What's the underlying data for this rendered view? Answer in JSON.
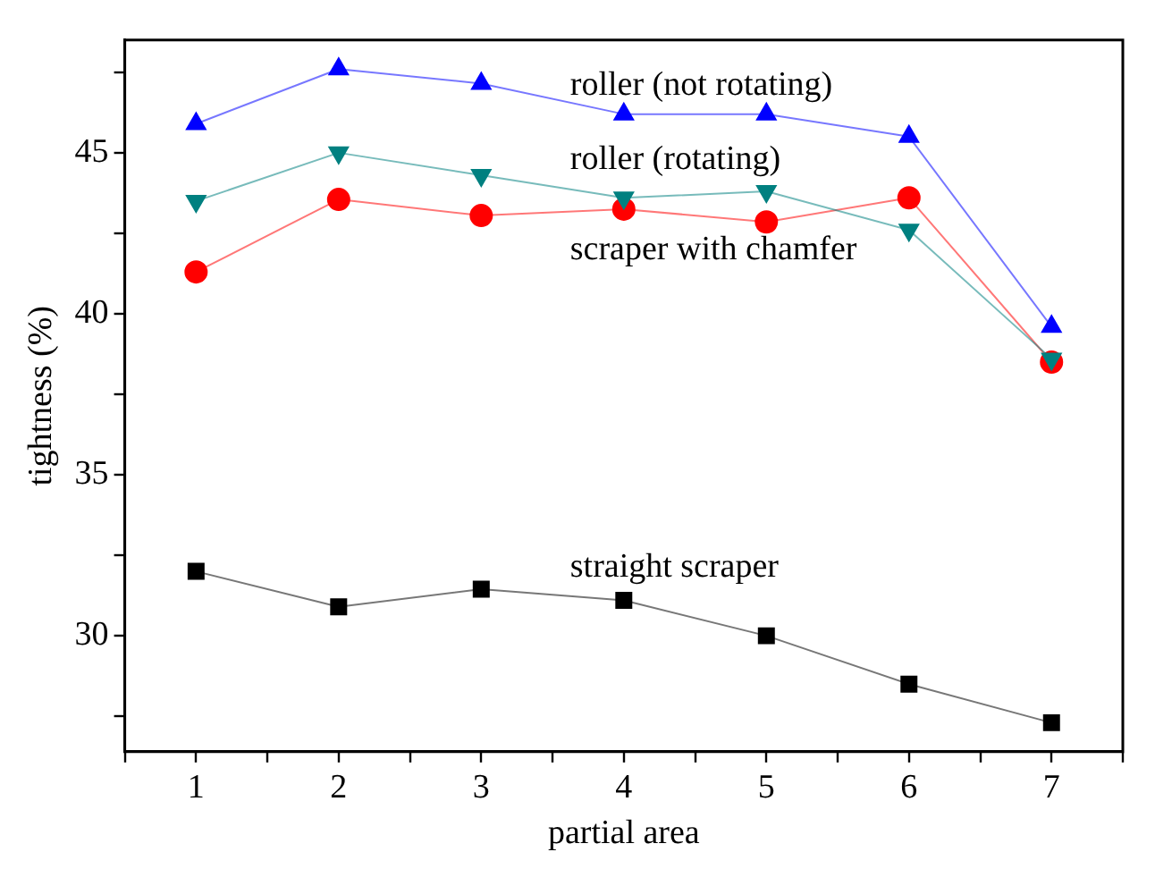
{
  "chart_data": {
    "type": "line",
    "xlabel": "partial area",
    "ylabel": "tightness (%)",
    "x": [
      1,
      2,
      3,
      4,
      5,
      6,
      7
    ],
    "xlim": [
      0.5,
      7.5
    ],
    "xticks": [
      {
        "value": 0.5,
        "label": null
      },
      1,
      {
        "value": 1.5,
        "label": null
      },
      2,
      {
        "value": 2.5,
        "label": null
      },
      3,
      {
        "value": 3.5,
        "label": null
      },
      4,
      {
        "value": 4.5,
        "label": null
      },
      5,
      {
        "value": 5.5,
        "label": null
      },
      6,
      {
        "value": 6.5,
        "label": null
      },
      7,
      {
        "value": 7.5,
        "label": null
      }
    ],
    "ylim": [
      26.4,
      48.5
    ],
    "yticks": [
      {
        "value": 27.5,
        "label": null
      },
      30,
      {
        "value": 32.5,
        "label": null
      },
      35,
      {
        "value": 37.5,
        "label": null
      },
      40,
      {
        "value": 42.5,
        "label": null
      },
      45,
      {
        "value": 47.5,
        "label": null
      }
    ],
    "grid": false,
    "legend": false,
    "line_style": "solid",
    "series": [
      {
        "name": "roller (not rotating)",
        "color": "#0000ff",
        "marker": "triangle",
        "values": [
          45.9,
          47.6,
          47.15,
          46.2,
          46.2,
          45.5,
          39.6
        ]
      },
      {
        "name": "roller (rotating)",
        "color": "#008080",
        "marker": "triangle-down",
        "values": [
          43.5,
          45.0,
          44.3,
          43.6,
          43.8,
          42.6,
          38.6
        ]
      },
      {
        "name": "scraper with chamfer",
        "color": "#ff0000",
        "marker": "circle",
        "values": [
          41.3,
          43.55,
          43.05,
          43.25,
          42.85,
          43.6,
          38.5
        ]
      },
      {
        "name": "straight scraper",
        "color": "#000000",
        "marker": "square",
        "values": [
          32.0,
          30.9,
          31.45,
          31.1,
          30.0,
          28.5,
          27.3
        ]
      }
    ]
  }
}
